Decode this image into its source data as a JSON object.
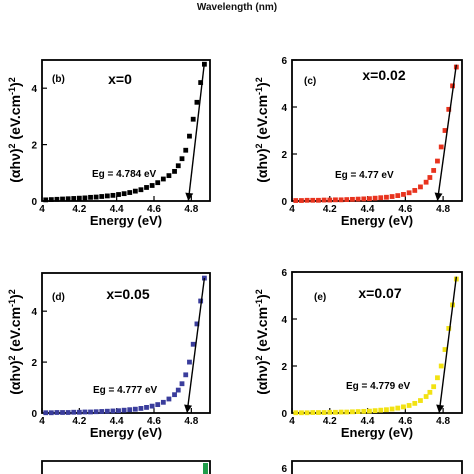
{
  "caption": "Wavelength (nm)",
  "chart_data": [
    {
      "type": "scatter",
      "panel": "(b)",
      "composition": "x=0",
      "band_gap_label": "Eg = 4.784 eV",
      "xlabel": "Energy (eV)",
      "ylabel_parts": [
        "(αhν)",
        "2",
        " (eV.cm",
        "-1",
        ")",
        "2"
      ],
      "xlim": [
        4.0,
        4.9
      ],
      "ylim": [
        0,
        5
      ],
      "xticks": [
        4.0,
        4.2,
        4.4,
        4.6,
        4.8
      ],
      "yticks": [
        0,
        2,
        4
      ],
      "marker_color": "#000000",
      "x": [
        4.02,
        4.05,
        4.08,
        4.11,
        4.14,
        4.17,
        4.2,
        4.23,
        4.26,
        4.29,
        4.32,
        4.35,
        4.38,
        4.41,
        4.44,
        4.47,
        4.5,
        4.53,
        4.56,
        4.59,
        4.62,
        4.65,
        4.68,
        4.71,
        4.73,
        4.75,
        4.77,
        4.79,
        4.81,
        4.83,
        4.85,
        4.87
      ],
      "y": [
        0.04,
        0.05,
        0.06,
        0.07,
        0.08,
        0.09,
        0.1,
        0.11,
        0.13,
        0.14,
        0.16,
        0.18,
        0.2,
        0.23,
        0.26,
        0.3,
        0.35,
        0.4,
        0.48,
        0.55,
        0.65,
        0.78,
        0.9,
        1.05,
        1.25,
        1.5,
        1.8,
        2.3,
        2.9,
        3.5,
        4.2,
        4.85
      ],
      "fit_line": {
        "x": [
          4.784,
          4.87
        ],
        "y": [
          0,
          4.9
        ]
      }
    },
    {
      "type": "scatter",
      "panel": "(c)",
      "composition": "x=0.02",
      "band_gap_label": "Eg = 4.77 eV",
      "xlabel": "Energy (eV)",
      "ylabel_parts": [
        "(αhν)",
        "2",
        " (eV.cm",
        "-1",
        ")",
        "2"
      ],
      "xlim": [
        4.0,
        4.9
      ],
      "ylim": [
        0,
        6
      ],
      "xticks": [
        4.0,
        4.2,
        4.4,
        4.6,
        4.8
      ],
      "yticks": [
        0,
        2,
        4,
        6
      ],
      "marker_color": "#e8331e",
      "x": [
        4.02,
        4.05,
        4.08,
        4.11,
        4.14,
        4.17,
        4.2,
        4.23,
        4.26,
        4.29,
        4.32,
        4.35,
        4.38,
        4.41,
        4.44,
        4.47,
        4.5,
        4.53,
        4.56,
        4.59,
        4.62,
        4.65,
        4.68,
        4.71,
        4.73,
        4.75,
        4.77,
        4.79,
        4.81,
        4.83,
        4.85,
        4.87
      ],
      "y": [
        0.02,
        0.02,
        0.03,
        0.03,
        0.03,
        0.04,
        0.04,
        0.05,
        0.05,
        0.06,
        0.07,
        0.08,
        0.09,
        0.1,
        0.12,
        0.14,
        0.16,
        0.19,
        0.23,
        0.28,
        0.35,
        0.45,
        0.6,
        0.8,
        1.0,
        1.3,
        1.7,
        2.3,
        3.0,
        3.9,
        4.9,
        5.7
      ],
      "fit_line": {
        "x": [
          4.77,
          4.87
        ],
        "y": [
          0,
          5.8
        ]
      }
    },
    {
      "type": "scatter",
      "panel": "(d)",
      "composition": "x=0.05",
      "band_gap_label": "Eg = 4.777 eV",
      "xlabel": "Energy (eV)",
      "ylabel_parts": [
        "(αhν)",
        "2",
        " (eV.cm",
        "-1",
        ")",
        "2"
      ],
      "xlim": [
        4.0,
        4.9
      ],
      "ylim": [
        0,
        5.5
      ],
      "xticks": [
        4.0,
        4.2,
        4.4,
        4.6,
        4.8
      ],
      "yticks": [
        0,
        2,
        4
      ],
      "marker_color": "#3a3d9c",
      "x": [
        4.02,
        4.05,
        4.08,
        4.11,
        4.14,
        4.17,
        4.2,
        4.23,
        4.26,
        4.29,
        4.32,
        4.35,
        4.38,
        4.41,
        4.44,
        4.47,
        4.5,
        4.53,
        4.56,
        4.59,
        4.62,
        4.65,
        4.68,
        4.71,
        4.73,
        4.75,
        4.77,
        4.79,
        4.81,
        4.83,
        4.85,
        4.87
      ],
      "y": [
        0.01,
        0.01,
        0.02,
        0.02,
        0.02,
        0.03,
        0.03,
        0.04,
        0.04,
        0.05,
        0.06,
        0.07,
        0.08,
        0.09,
        0.11,
        0.13,
        0.15,
        0.18,
        0.22,
        0.27,
        0.33,
        0.42,
        0.55,
        0.72,
        0.9,
        1.15,
        1.5,
        2.0,
        2.7,
        3.5,
        4.4,
        5.3
      ],
      "fit_line": {
        "x": [
          4.777,
          4.87
        ],
        "y": [
          0,
          5.3
        ]
      }
    },
    {
      "type": "scatter",
      "panel": "(e)",
      "composition": "x=0.07",
      "band_gap_label": "Eg = 4.779 eV",
      "xlabel": "Energy (eV)",
      "ylabel_parts": [
        "(αhν)",
        "2",
        " (eV.cm",
        "-1",
        ")",
        "2"
      ],
      "xlim": [
        4.0,
        4.9
      ],
      "ylim": [
        0,
        6
      ],
      "xticks": [
        4.0,
        4.2,
        4.4,
        4.6,
        4.8
      ],
      "yticks": [
        0,
        2,
        4,
        6
      ],
      "marker_color": "#f2e212",
      "x": [
        4.02,
        4.05,
        4.08,
        4.11,
        4.14,
        4.17,
        4.2,
        4.23,
        4.26,
        4.29,
        4.32,
        4.35,
        4.38,
        4.41,
        4.44,
        4.47,
        4.5,
        4.53,
        4.56,
        4.59,
        4.62,
        4.65,
        4.68,
        4.71,
        4.73,
        4.75,
        4.77,
        4.79,
        4.81,
        4.83,
        4.85,
        4.87
      ],
      "y": [
        0.01,
        0.01,
        0.01,
        0.02,
        0.02,
        0.02,
        0.03,
        0.03,
        0.04,
        0.04,
        0.05,
        0.06,
        0.07,
        0.08,
        0.1,
        0.12,
        0.14,
        0.17,
        0.21,
        0.26,
        0.32,
        0.41,
        0.53,
        0.7,
        0.88,
        1.12,
        1.5,
        2.0,
        2.7,
        3.6,
        4.6,
        5.7
      ],
      "fit_line": {
        "x": [
          4.779,
          4.87
        ],
        "y": [
          0,
          5.8
        ]
      }
    }
  ],
  "partial_panels": [
    {
      "name": "partial-panel-left",
      "marker_color": "#1f9c4a"
    },
    {
      "name": "partial-panel-right",
      "tick_text": "6"
    }
  ]
}
